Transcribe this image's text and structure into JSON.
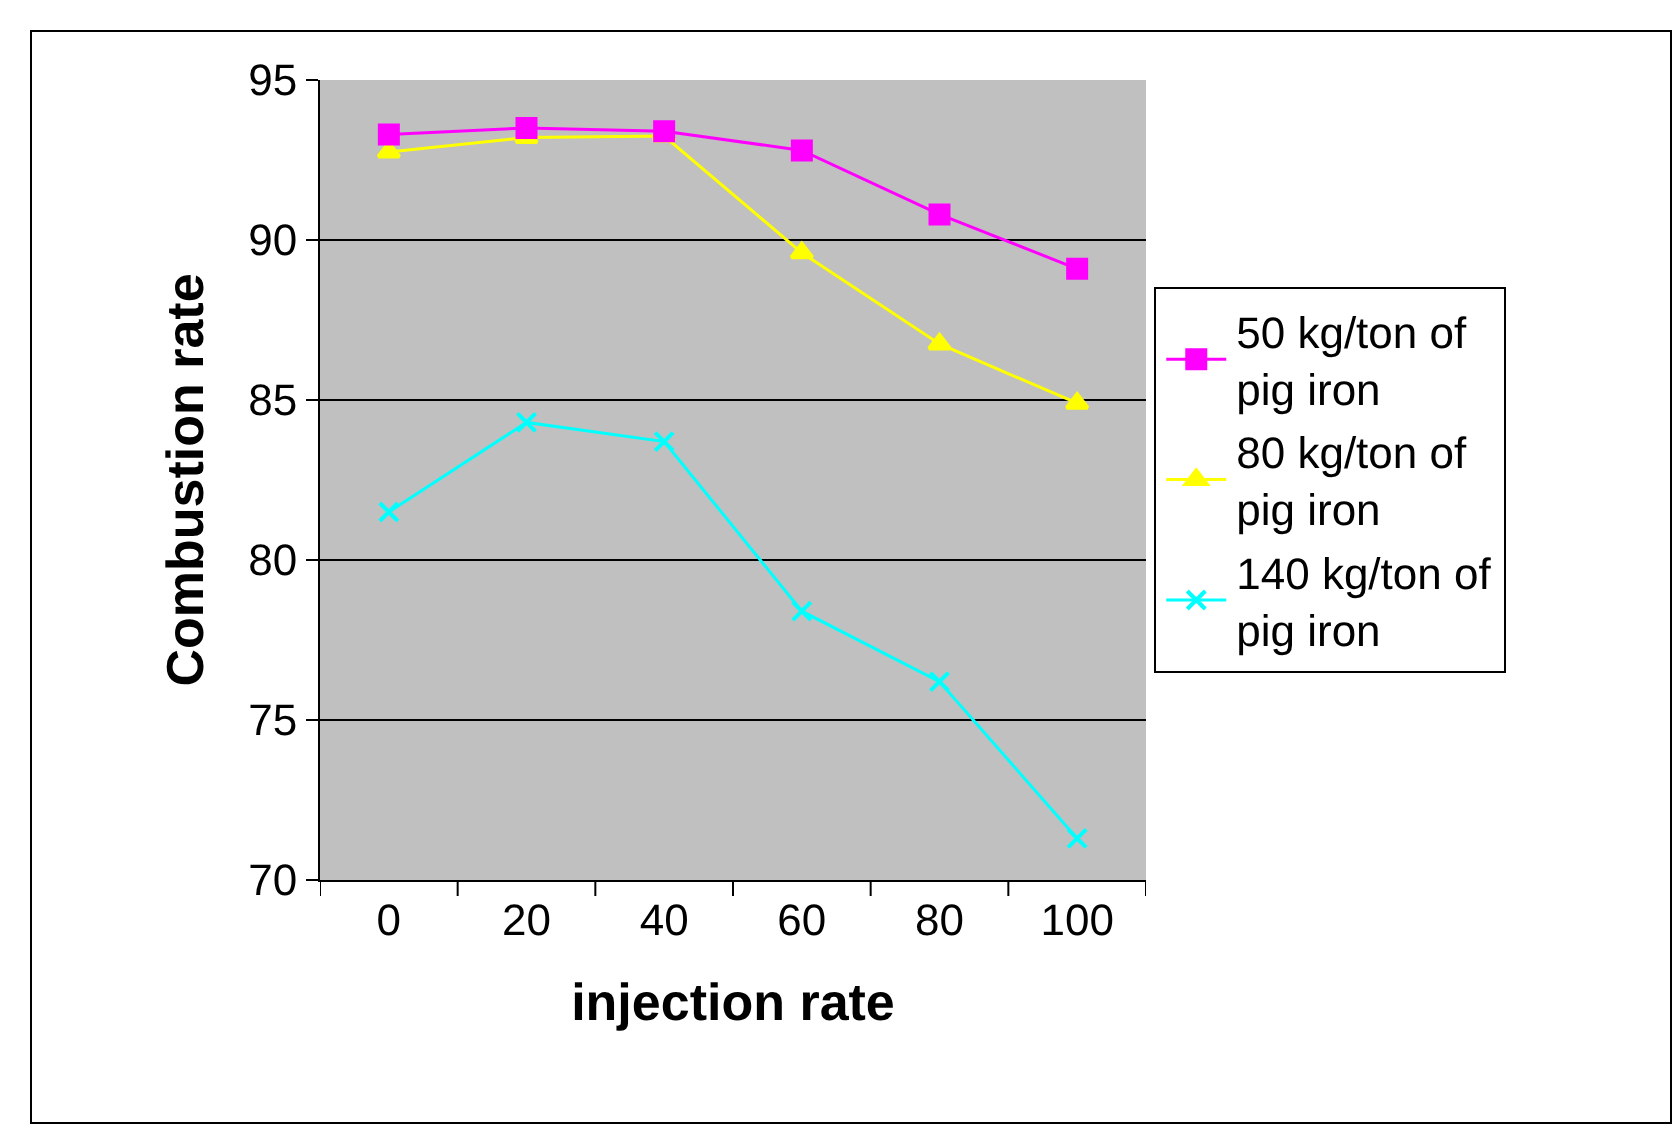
{
  "chart_data": {
    "type": "line",
    "xlabel": "injection rate",
    "ylabel": "Combustion rate",
    "categories": [
      "0",
      "20",
      "40",
      "60",
      "80",
      "100"
    ],
    "series": [
      {
        "name": "50 kg/ton of pig iron",
        "color": "#ff00ff",
        "marker": "square",
        "values": [
          93.3,
          93.5,
          93.4,
          92.8,
          90.8,
          89.1
        ]
      },
      {
        "name": "80 kg/ton of pig iron",
        "color": "#ffff00",
        "marker": "triangle",
        "values": [
          92.75,
          93.2,
          93.25,
          89.6,
          86.75,
          84.9
        ]
      },
      {
        "name": "140 kg/ton of pig iron",
        "color": "#00ffff",
        "marker": "cross",
        "values": [
          81.5,
          84.3,
          83.7,
          78.4,
          76.2,
          71.3
        ]
      }
    ],
    "ylim": [
      70,
      95
    ],
    "yticks": [
      70,
      75,
      80,
      85,
      90,
      95
    ],
    "grid": "y",
    "legend": "right"
  }
}
